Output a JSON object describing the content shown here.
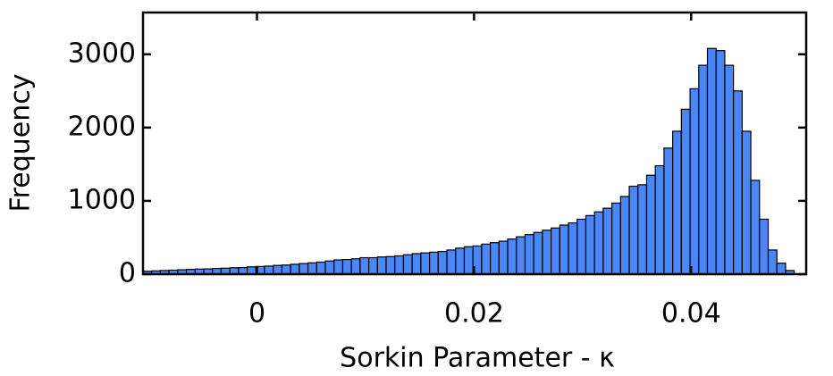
{
  "chart_data": {
    "type": "histogram",
    "xlabel": "Sorkin Parameter - κ",
    "ylabel": "Frequency",
    "color": "#4a86f5",
    "bins": [
      -0.0105,
      -0.0097,
      -0.0089,
      -0.0081,
      -0.0073,
      -0.0065,
      -0.0057,
      -0.0049,
      -0.0041,
      -0.0033,
      -0.0025,
      -0.0017,
      -0.0009,
      -0.0001,
      0.0007,
      0.0015,
      0.0023,
      0.0031,
      0.0039,
      0.0047,
      0.0055,
      0.0063,
      0.0071,
      0.0079,
      0.0087,
      0.0095,
      0.0103,
      0.0111,
      0.0119,
      0.0127,
      0.0135,
      0.0143,
      0.0151,
      0.0159,
      0.0167,
      0.0175,
      0.0183,
      0.0191,
      0.0199,
      0.0207,
      0.0215,
      0.0223,
      0.0231,
      0.0239,
      0.0247,
      0.0255,
      0.0263,
      0.0271,
      0.0279,
      0.0287,
      0.0295,
      0.0303,
      0.0311,
      0.0319,
      0.0327,
      0.0335,
      0.0343,
      0.0351,
      0.0359,
      0.0367,
      0.0375,
      0.0383,
      0.0391,
      0.0399,
      0.0407,
      0.0415,
      0.0423,
      0.0431,
      0.0439,
      0.0447,
      0.0455,
      0.0463,
      0.0471,
      0.0479,
      0.0487,
      0.0495
    ],
    "values": [
      40,
      45,
      50,
      55,
      60,
      65,
      70,
      72,
      78,
      82,
      88,
      90,
      100,
      105,
      110,
      120,
      125,
      135,
      145,
      155,
      165,
      180,
      195,
      200,
      210,
      225,
      225,
      235,
      240,
      250,
      265,
      280,
      290,
      300,
      310,
      330,
      355,
      375,
      385,
      410,
      430,
      450,
      480,
      510,
      540,
      570,
      600,
      630,
      670,
      700,
      750,
      800,
      850,
      900,
      970,
      1060,
      1200,
      1220,
      1350,
      1480,
      1720,
      1950,
      2250,
      2530,
      2850,
      3080,
      3050,
      2850,
      2500,
      1950,
      1280,
      750,
      330,
      150,
      50
    ],
    "xlim": [
      -0.0105,
      0.0506
    ],
    "ylim": [
      0,
      3570
    ],
    "xticks": [
      0,
      0.02,
      0.04
    ],
    "yticks": [
      0,
      1000,
      2000,
      3000
    ]
  }
}
